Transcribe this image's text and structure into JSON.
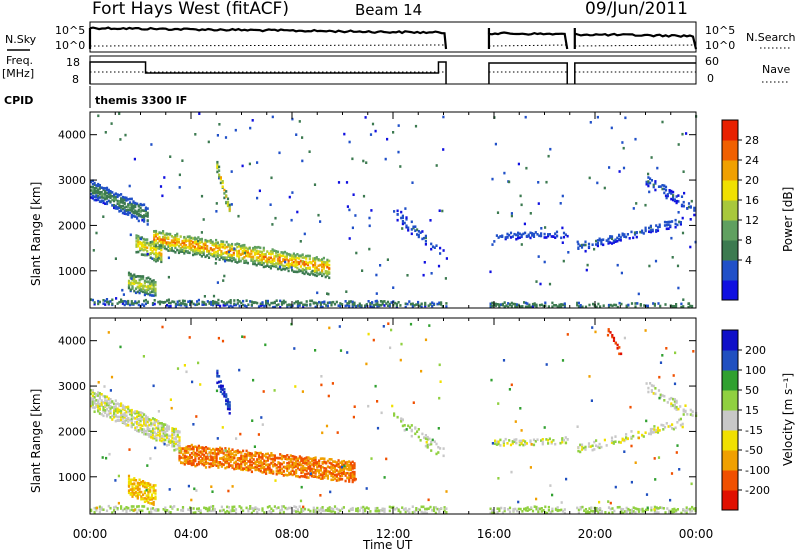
{
  "header": {
    "radar": "Fort Hays West (fitACF)",
    "beam": "Beam 14",
    "date": "09/Jun/2011"
  },
  "status_panels": {
    "left_labels": [
      "N.Sky",
      "Freq.",
      "[MHz]",
      "CPID"
    ],
    "right_labels": [
      "N.Search",
      "Nave"
    ],
    "noise_ticks_left": [
      "10^5",
      "10^0"
    ],
    "noise_ticks_right": [
      "10^5",
      "10^0"
    ],
    "freq_ticks": [
      "18",
      "8"
    ],
    "nave_ticks": [
      "60",
      "0"
    ],
    "cpid_text": "themis 3300 IF"
  },
  "colors": {
    "power_scale": [
      "#1010e0",
      "#2050c8",
      "#3c7a50",
      "#60a060",
      "#a8c83c",
      "#f0e000",
      "#f0a000",
      "#f06000",
      "#e82000"
    ],
    "velocity_scale": [
      "#1010c8",
      "#2050c0",
      "#30a030",
      "#90d040",
      "#c8c8c8",
      "#f0e000",
      "#f0a000",
      "#f05000",
      "#e01000"
    ]
  },
  "chart_data": [
    {
      "type": "heatmap",
      "title": "",
      "xlabel": "",
      "ylabel": "Slant Range [km]",
      "colorbar_label": "Power [dB]",
      "colorbar_ticks": [
        "28",
        "24",
        "20",
        "16",
        "12",
        "8",
        "4"
      ],
      "colorbar_range": [
        0,
        32
      ],
      "x_ticks": [
        "00:00",
        "04:00",
        "08:00",
        "12:00",
        "16:00",
        "20:00",
        "00:00"
      ],
      "y_ticks": [
        "4000",
        "3000",
        "2000",
        "1000"
      ],
      "xlim_hours": [
        0,
        24
      ],
      "ylim_km": [
        180,
        4500
      ],
      "data_gaps_ut": [
        [
          14.1,
          15.8
        ],
        [
          18.9,
          19.2
        ]
      ],
      "features": [
        {
          "name": "main echo band",
          "start_ut": 2.5,
          "end_ut": 9.5,
          "range_start_km": 1700,
          "range_end_km": 1050,
          "peak_db": 28
        },
        {
          "name": "early echo",
          "start_ut": 1.8,
          "end_ut": 2.8,
          "range_start_km": 1600,
          "range_end_km": 1350,
          "peak_db": 24
        },
        {
          "name": "descending echo",
          "start_ut": 0,
          "end_ut": 2.3,
          "range_start_km": 2800,
          "range_end_km": 2200,
          "peak_db": 12
        },
        {
          "name": "low echo",
          "start_ut": 1.5,
          "end_ut": 2.6,
          "range_start_km": 750,
          "range_end_km": 600,
          "peak_db": 20
        },
        {
          "name": "high patch",
          "start_ut": 5.0,
          "end_ut": 5.5,
          "range_start_km": 3300,
          "range_end_km": 2300,
          "peak_db": 24
        },
        {
          "name": "ground scatter",
          "start_ut": 0,
          "end_ut": 24,
          "range_start_km": 300,
          "range_end_km": 200,
          "peak_db": 12
        }
      ]
    },
    {
      "type": "heatmap",
      "title": "",
      "xlabel": "Time UT",
      "ylabel": "Slant Range [km]",
      "colorbar_label": "Velocity [m s⁻¹]",
      "colorbar_ticks": [
        "200",
        "100",
        "50",
        "15",
        "-15",
        "-50",
        "-100",
        "-200"
      ],
      "colorbar_range": [
        -250,
        250
      ],
      "x_ticks": [
        "00:00",
        "04:00",
        "08:00",
        "12:00",
        "16:00",
        "20:00",
        "00:00"
      ],
      "y_ticks": [
        "4000",
        "3000",
        "2000",
        "1000"
      ],
      "xlim_hours": [
        0,
        24
      ],
      "ylim_km": [
        180,
        4500
      ],
      "data_gaps_ut": [
        [
          14.1,
          15.8
        ],
        [
          18.9,
          19.2
        ]
      ],
      "features": [
        {
          "name": "main echo band",
          "start_ut": 3.5,
          "end_ut": 10.5,
          "range_start_km": 1500,
          "range_end_km": 1100,
          "velocity": -100
        },
        {
          "name": "descending ground",
          "start_ut": 0,
          "end_ut": 3.5,
          "range_start_km": 2700,
          "range_end_km": 1800,
          "velocity": 0
        },
        {
          "name": "low echo",
          "start_ut": 1.5,
          "end_ut": 2.6,
          "range_start_km": 800,
          "range_end_km": 600,
          "velocity": -50
        },
        {
          "name": "high patch",
          "start_ut": 5.0,
          "end_ut": 5.5,
          "range_start_km": 3200,
          "range_end_km": 2500,
          "velocity": 200
        }
      ]
    }
  ]
}
